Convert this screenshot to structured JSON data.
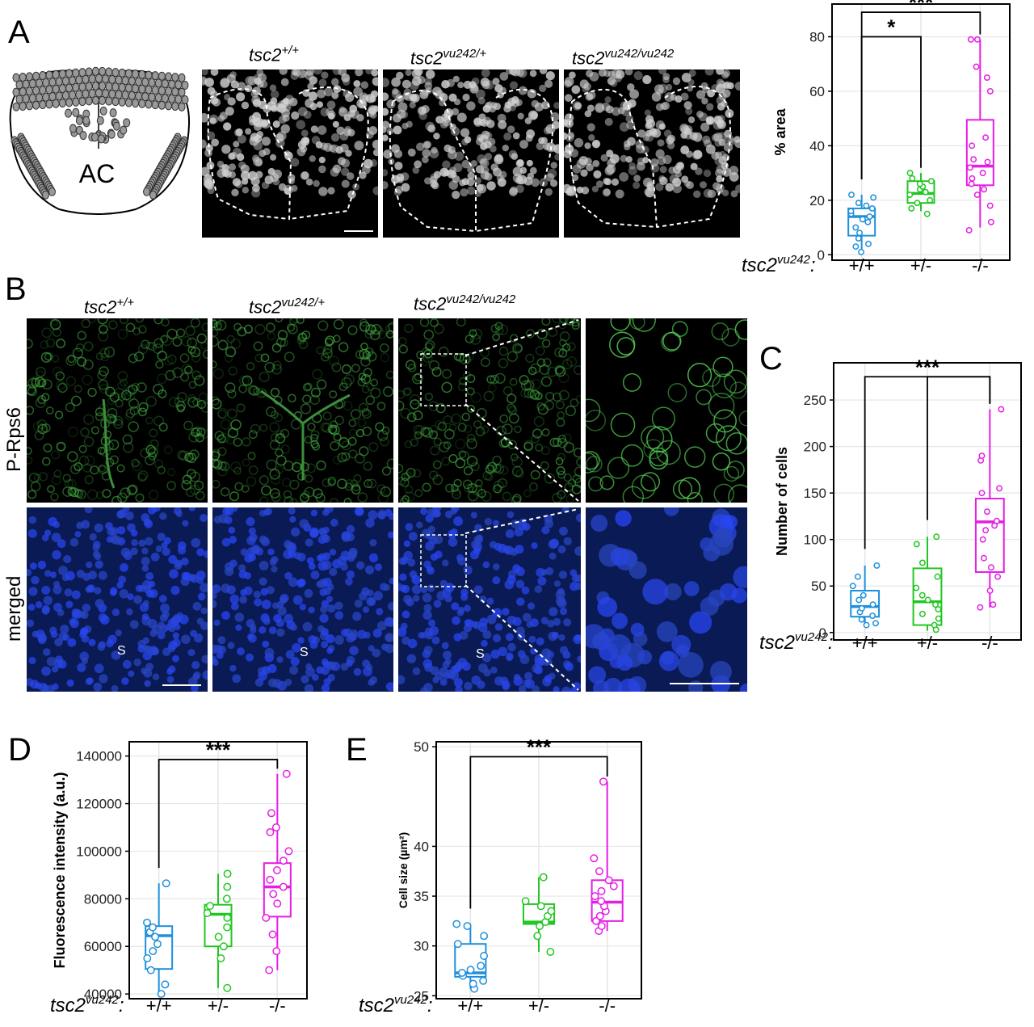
{
  "panels": {
    "a": "A",
    "b": "B",
    "c": "C",
    "d": "D",
    "e": "E"
  },
  "genotypes": {
    "wt_base": "tsc2",
    "wt_sup": "+/+",
    "het_base": "tsc2",
    "het_sup": "vu242/+",
    "hom_base": "tsc2",
    "hom_sup": "vu242/vu242"
  },
  "schematic": {
    "label": "AC"
  },
  "row_labels": {
    "top": "P-Rps6",
    "bottom": "merged"
  },
  "soma_label": "S",
  "axis_genotype": {
    "base": "tsc2",
    "sup": "vu242",
    "suffix": ":"
  },
  "colors": {
    "wt": "#1E90DC",
    "het": "#21C721",
    "hom": "#E61DE6"
  },
  "chart_data": [
    {
      "id": "A",
      "type": "box",
      "title": "",
      "ylabel": "% area",
      "categories": [
        "+/+",
        "+/-",
        "-/-"
      ],
      "ylim": [
        -2,
        92
      ],
      "yticks": [
        0,
        20,
        40,
        60,
        80
      ],
      "yticklabels": [
        "0",
        "20",
        "40",
        "60",
        "80"
      ],
      "grid": true,
      "boxes": [
        {
          "q1": 7,
          "median": 14,
          "q3": 17,
          "wlo": 2,
          "whi": 22
        },
        {
          "q1": 19,
          "median": 22.5,
          "q3": 27,
          "wlo": 16,
          "whi": 30
        },
        {
          "q1": 25.5,
          "median": 32.5,
          "q3": 49.5,
          "wlo": 10,
          "whi": 79
        }
      ],
      "points": [
        [
          1,
          3,
          4,
          6,
          8,
          10,
          12,
          13,
          14,
          15,
          16,
          17,
          18,
          19,
          21,
          22
        ],
        [
          15,
          17,
          19,
          20,
          22,
          23,
          24,
          25,
          26,
          27,
          28,
          30
        ],
        [
          9,
          12,
          18,
          22,
          24,
          26,
          28,
          30,
          32,
          34,
          35,
          40,
          43,
          60,
          65,
          69,
          79,
          79
        ]
      ],
      "significance": [
        {
          "from": 0,
          "to": 2,
          "label": "***",
          "y": 89
        },
        {
          "from": 0,
          "to": 1,
          "label": "*",
          "y": 80
        }
      ]
    },
    {
      "id": "C",
      "type": "box",
      "title": "",
      "ylabel": "Number of cells",
      "categories": [
        "+/+",
        "+/-",
        "-/-"
      ],
      "ylim": [
        -8,
        290
      ],
      "yticks": [
        0,
        50,
        100,
        150,
        200,
        250
      ],
      "yticklabels": [
        "0",
        "50",
        "100",
        "150",
        "200",
        "250"
      ],
      "grid": true,
      "boxes": [
        {
          "q1": 17,
          "median": 28,
          "q3": 45,
          "wlo": 8,
          "whi": 72
        },
        {
          "q1": 8,
          "median": 33,
          "q3": 69,
          "wlo": 2,
          "whi": 103
        },
        {
          "q1": 65,
          "median": 119,
          "q3": 144,
          "wlo": 27,
          "whi": 240
        }
      ],
      "points": [
        [
          8,
          10,
          14,
          18,
          22,
          26,
          30,
          35,
          40,
          50,
          60,
          72
        ],
        [
          3,
          8,
          15,
          20,
          25,
          30,
          35,
          40,
          48,
          60,
          75,
          95,
          103
        ],
        [
          27,
          30,
          45,
          60,
          70,
          80,
          100,
          110,
          115,
          120,
          130,
          150,
          155,
          185,
          190,
          240
        ]
      ],
      "significance": [
        {
          "from": 0,
          "to": 2,
          "label": "***",
          "y": 275
        },
        {
          "from": 1,
          "to": 2,
          "label": "",
          "y": 275
        }
      ]
    },
    {
      "id": "D",
      "type": "box",
      "title": "",
      "ylabel": "Fluorescence intensity (a.u.)",
      "categories": [
        "+/+",
        "+/-",
        "-/-"
      ],
      "ylim": [
        38000,
        146000
      ],
      "yticks": [
        40000,
        60000,
        80000,
        100000,
        120000,
        140000
      ],
      "yticklabels": [
        "40000",
        "60000",
        "80000",
        "100000",
        "120000",
        "140000"
      ],
      "grid": true,
      "boxes": [
        {
          "q1": 50500,
          "median": 64500,
          "q3": 68500,
          "wlo": 40000,
          "whi": 86500
        },
        {
          "q1": 60000,
          "median": 73500,
          "q3": 77500,
          "wlo": 42500,
          "whi": 90500
        },
        {
          "q1": 72500,
          "median": 85000,
          "q3": 95000,
          "wlo": 50000,
          "whi": 132500
        }
      ],
      "points": [
        [
          40000,
          44000,
          50000,
          55000,
          58000,
          61000,
          64000,
          66000,
          68000,
          70000,
          86500
        ],
        [
          42500,
          55000,
          60000,
          64000,
          68000,
          72000,
          74000,
          77000,
          80000,
          85000,
          90500
        ],
        [
          50000,
          58000,
          65000,
          72000,
          78000,
          82000,
          85000,
          88000,
          92000,
          96000,
          100000,
          108000,
          110000,
          116000,
          132500
        ]
      ],
      "significance": [
        {
          "from": 0,
          "to": 2,
          "label": "***",
          "y": 138500
        }
      ]
    },
    {
      "id": "E",
      "type": "box",
      "title": "",
      "ylabel": "Cell size (µm²)",
      "categories": [
        "+/+",
        "+/-",
        "-/-"
      ],
      "ylim": [
        24.7,
        50.5
      ],
      "yticks": [
        25,
        30,
        35,
        40,
        50
      ],
      "yticklabels": [
        "25",
        "30",
        "35",
        "40",
        "50"
      ],
      "grid": true,
      "boxes": [
        {
          "q1": 26.9,
          "median": 27.3,
          "q3": 30.2,
          "wlo": 25.7,
          "whi": 32.2
        },
        {
          "q1": 32.2,
          "median": 32.4,
          "q3": 34.2,
          "wlo": 29.4,
          "whi": 36.9
        },
        {
          "q1": 32.5,
          "median": 34.4,
          "q3": 36.6,
          "wlo": 31.5,
          "whi": 46.5
        }
      ],
      "points": [
        [
          25.7,
          26.2,
          26.5,
          27.0,
          27.3,
          27.6,
          28.0,
          29.0,
          30.2,
          31.0,
          32.0,
          32.2
        ],
        [
          29.4,
          31.0,
          32.0,
          32.4,
          33.0,
          33.5,
          34.0,
          34.5,
          36.9
        ],
        [
          31.5,
          32.0,
          32.5,
          33.0,
          33.5,
          34.0,
          34.5,
          35.0,
          35.5,
          36.0,
          36.6,
          37.5,
          38.8,
          46.5
        ]
      ],
      "significance": [
        {
          "from": 0,
          "to": 2,
          "label": "***",
          "y": 49
        }
      ]
    }
  ]
}
